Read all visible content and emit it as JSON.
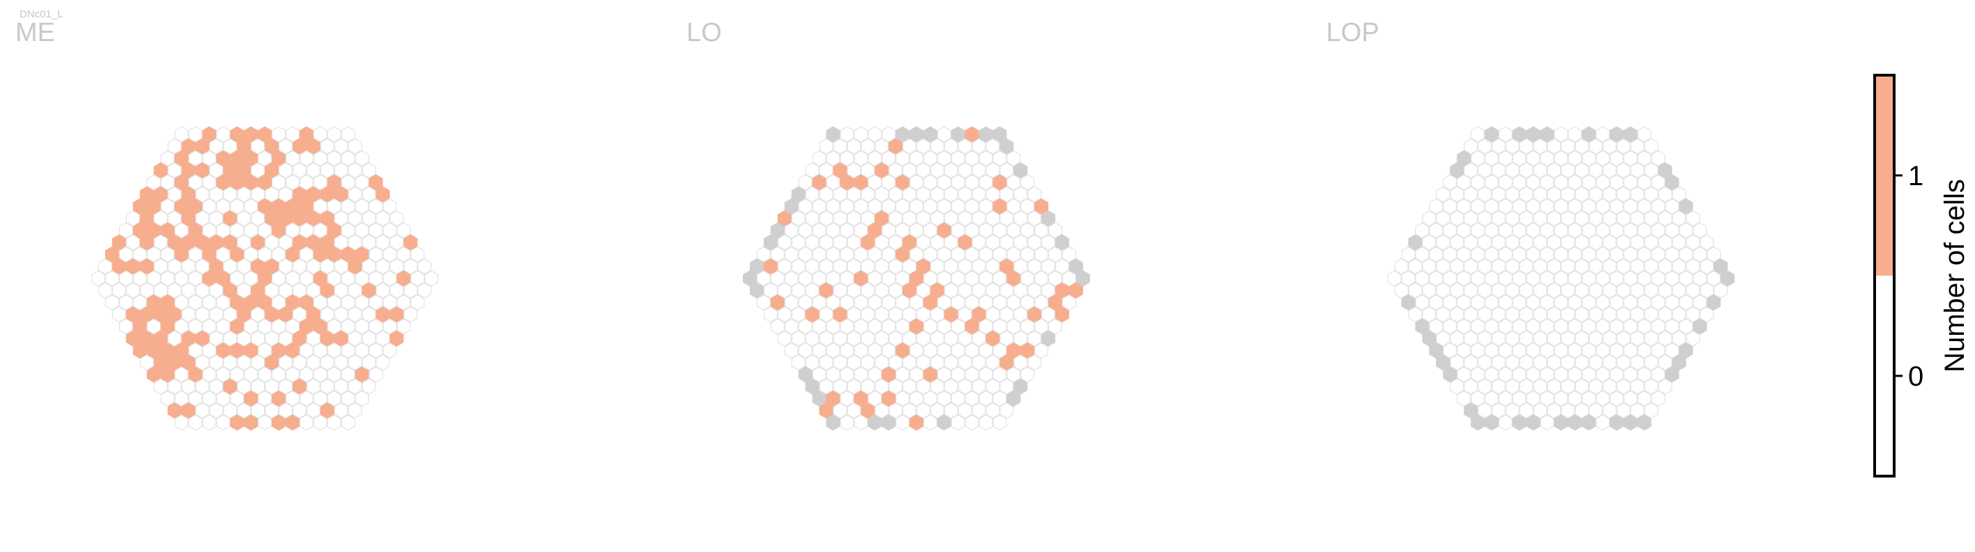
{
  "chart_data": {
    "type": "heatmap",
    "neuron_label": "DNc01_L",
    "panels": [
      {
        "name": "ME",
        "radius": 12,
        "active_fraction": 0.36,
        "seed": 11,
        "edge_gray": false
      },
      {
        "name": "LO",
        "radius": 12,
        "active_fraction": 0.11,
        "seed": 47,
        "edge_gray": true
      },
      {
        "name": "LOP",
        "radius": 12,
        "active_fraction": 0.0,
        "seed": 3,
        "edge_gray": true
      }
    ],
    "colorbar": {
      "label": "Number of cells",
      "ticks": [
        "0",
        "1"
      ],
      "tick_values": [
        0,
        1
      ],
      "range": [
        -0.5,
        1.5
      ],
      "colors": {
        "zero": "#ffffff",
        "one": "#f7ae8e"
      }
    },
    "colors": {
      "active": "#f7ae8e",
      "inactive_stroke": "#e3e3e3",
      "no_data": "#cfcfcf",
      "title": "#c8c8c8"
    }
  }
}
